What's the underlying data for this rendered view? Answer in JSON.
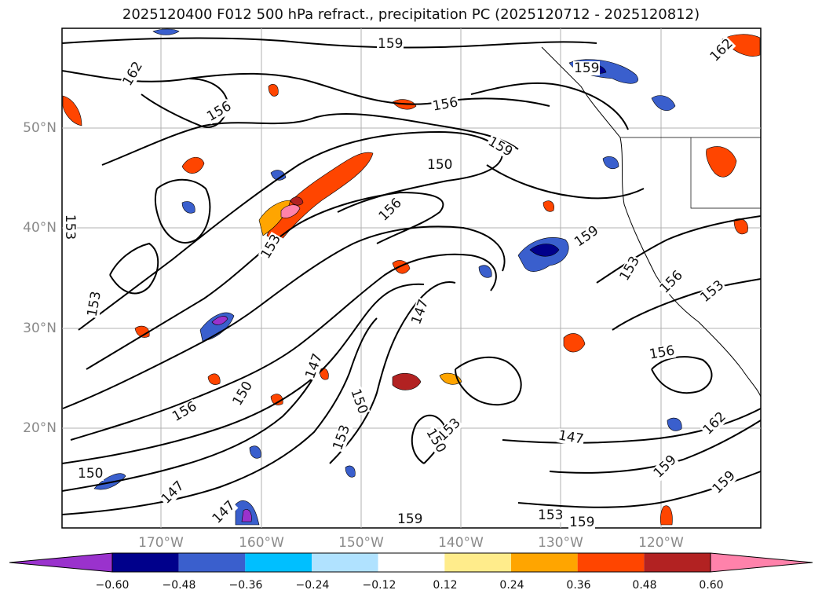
{
  "title": "2025120400 F012 500 hPa refract., precipitation PC (2025120712 - 2025120812)",
  "axes": {
    "lat_labels": [
      "50°N",
      "40°N",
      "30°N",
      "20°N"
    ],
    "lon_labels": [
      "170°W",
      "160°W",
      "150°W",
      "140°W",
      "130°W",
      "120°W"
    ]
  },
  "contour_labels": [
    {
      "text": "159",
      "id": "c1"
    },
    {
      "text": "162",
      "id": "c2"
    },
    {
      "text": "162",
      "id": "c3"
    },
    {
      "text": "159",
      "id": "c4"
    },
    {
      "text": "156",
      "id": "c5"
    },
    {
      "text": "156",
      "id": "c6"
    },
    {
      "text": "159",
      "id": "c7"
    },
    {
      "text": "150",
      "id": "c8"
    },
    {
      "text": "156",
      "id": "c9"
    },
    {
      "text": "153",
      "id": "c10"
    },
    {
      "text": "153",
      "id": "c11"
    },
    {
      "text": "159",
      "id": "c12"
    },
    {
      "text": "153",
      "id": "c13"
    },
    {
      "text": "156",
      "id": "c14"
    },
    {
      "text": "153",
      "id": "c15"
    },
    {
      "text": "153",
      "id": "c16"
    },
    {
      "text": "147",
      "id": "c17"
    },
    {
      "text": "156",
      "id": "c18"
    },
    {
      "text": "147",
      "id": "c19"
    },
    {
      "text": "150",
      "id": "c20"
    },
    {
      "text": "150",
      "id": "c21"
    },
    {
      "text": "156",
      "id": "c22"
    },
    {
      "text": "153",
      "id": "c23"
    },
    {
      "text": "153",
      "id": "c24"
    },
    {
      "text": "150",
      "id": "c25"
    },
    {
      "text": "147",
      "id": "c26"
    },
    {
      "text": "162",
      "id": "c27"
    },
    {
      "text": "150",
      "id": "c28"
    },
    {
      "text": "147",
      "id": "c29"
    },
    {
      "text": "147",
      "id": "c30"
    },
    {
      "text": "159",
      "id": "c31"
    },
    {
      "text": "153",
      "id": "c32"
    },
    {
      "text": "159",
      "id": "c33"
    },
    {
      "text": "159",
      "id": "c34"
    },
    {
      "text": "159",
      "id": "c35"
    }
  ],
  "colorbar": {
    "ticks": [
      "−0.60",
      "−0.48",
      "−0.36",
      "−0.24",
      "−0.12",
      "0.12",
      "0.24",
      "0.36",
      "0.48",
      "0.60"
    ],
    "colors": [
      "#9a32cd",
      "#00008b",
      "#3a5fcd",
      "#00bfff",
      "#b0e2ff",
      "#ffffff",
      "#ffec8b",
      "#ffa500",
      "#ff4500",
      "#b22222",
      "#ff82ab"
    ]
  }
}
